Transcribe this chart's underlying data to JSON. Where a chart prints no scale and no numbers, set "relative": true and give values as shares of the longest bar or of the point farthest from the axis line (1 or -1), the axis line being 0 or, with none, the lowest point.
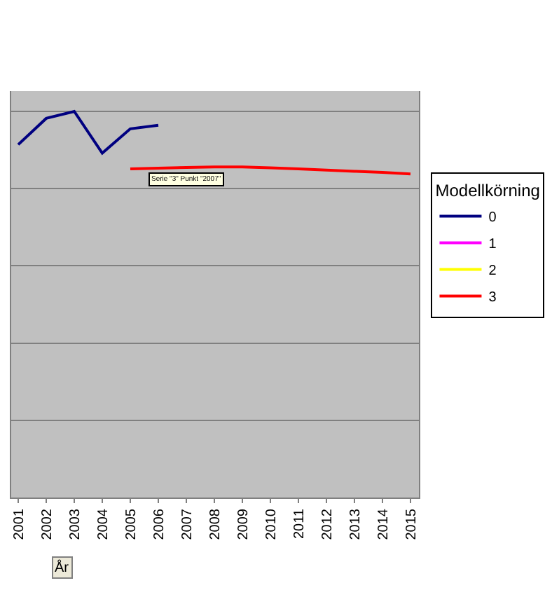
{
  "chart_data": {
    "type": "line",
    "relative": true,
    "xlabel": "År",
    "legend_title": "Modellkörning",
    "legend": "right",
    "grid": "y",
    "marker": "none",
    "line_style": "solid",
    "categories": [
      "2001",
      "2002",
      "2003",
      "2004",
      "2005",
      "2006",
      "2007",
      "2008",
      "2009",
      "2010",
      "2011",
      "2012",
      "2013",
      "2014",
      "2015"
    ],
    "series": [
      {
        "name": "0",
        "color": "#000080",
        "values": [
          0.914,
          0.982,
          1,
          0.892,
          0.955,
          0.964,
          null,
          null,
          null,
          null,
          null,
          null,
          null,
          null,
          null
        ]
      },
      {
        "name": "1",
        "color": "#ff00ff",
        "values": [
          null,
          null,
          null,
          null,
          null,
          null,
          null,
          null,
          null,
          null,
          null,
          null,
          null,
          null,
          null
        ]
      },
      {
        "name": "2",
        "color": "#ffff00",
        "values": [
          null,
          null,
          null,
          null,
          null,
          null,
          null,
          null,
          null,
          null,
          null,
          null,
          null,
          null,
          null
        ]
      },
      {
        "name": "3",
        "color": "#ff0000",
        "values": [
          null,
          null,
          null,
          null,
          0.851,
          0.853,
          0.855,
          0.856,
          0.856,
          0.854,
          0.851,
          0.848,
          0.845,
          0.842,
          0.838
        ]
      }
    ],
    "annotations": [
      {
        "text": "Serie \"3\" Punkt \"2007\"",
        "x": "2007",
        "y": 0.855
      }
    ]
  }
}
